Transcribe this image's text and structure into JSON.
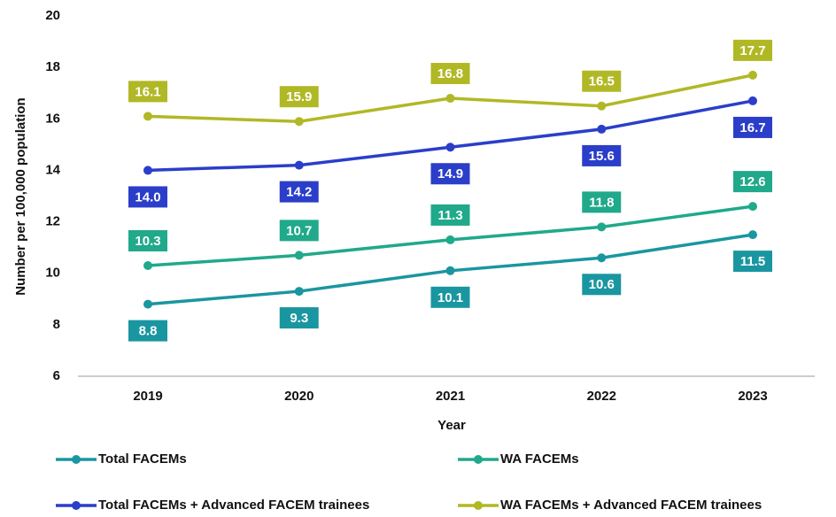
{
  "chart_data": {
    "type": "line",
    "x_label": "Year",
    "y_label": "Number per 100,000 population",
    "categories": [
      "2019",
      "2020",
      "2021",
      "2022",
      "2023"
    ],
    "ylim": [
      6,
      20
    ],
    "yticks": [
      6,
      8,
      10,
      12,
      14,
      16,
      18,
      20
    ],
    "grid": false,
    "legend": "bottom",
    "series": [
      {
        "name": "Total FACEMs",
        "color": "#1a96a0",
        "values": [
          8.8,
          9.3,
          10.1,
          10.6,
          11.5
        ],
        "value_labels": [
          "8.8",
          "9.3",
          "10.1",
          "10.6",
          "11.5"
        ]
      },
      {
        "name": "WA FACEMs",
        "color": "#20a98a",
        "values": [
          10.3,
          10.7,
          11.3,
          11.8,
          12.6
        ],
        "value_labels": [
          "10.3",
          "10.7",
          "11.3",
          "11.8",
          "12.6"
        ]
      },
      {
        "name": "Total FACEMs + Advanced FACEM trainees",
        "color": "#2b3ec9",
        "values": [
          14.0,
          14.2,
          14.9,
          15.6,
          16.7
        ],
        "value_labels": [
          "14.0",
          "14.2",
          "14.9",
          "15.6",
          "16.7"
        ]
      },
      {
        "name": "WA FACEMs + Advanced FACEM trainees",
        "color": "#b1b826",
        "values": [
          16.1,
          15.9,
          16.8,
          16.5,
          17.7
        ],
        "value_labels": [
          "16.1",
          "15.9",
          "16.8",
          "16.5",
          "17.7"
        ]
      }
    ]
  }
}
